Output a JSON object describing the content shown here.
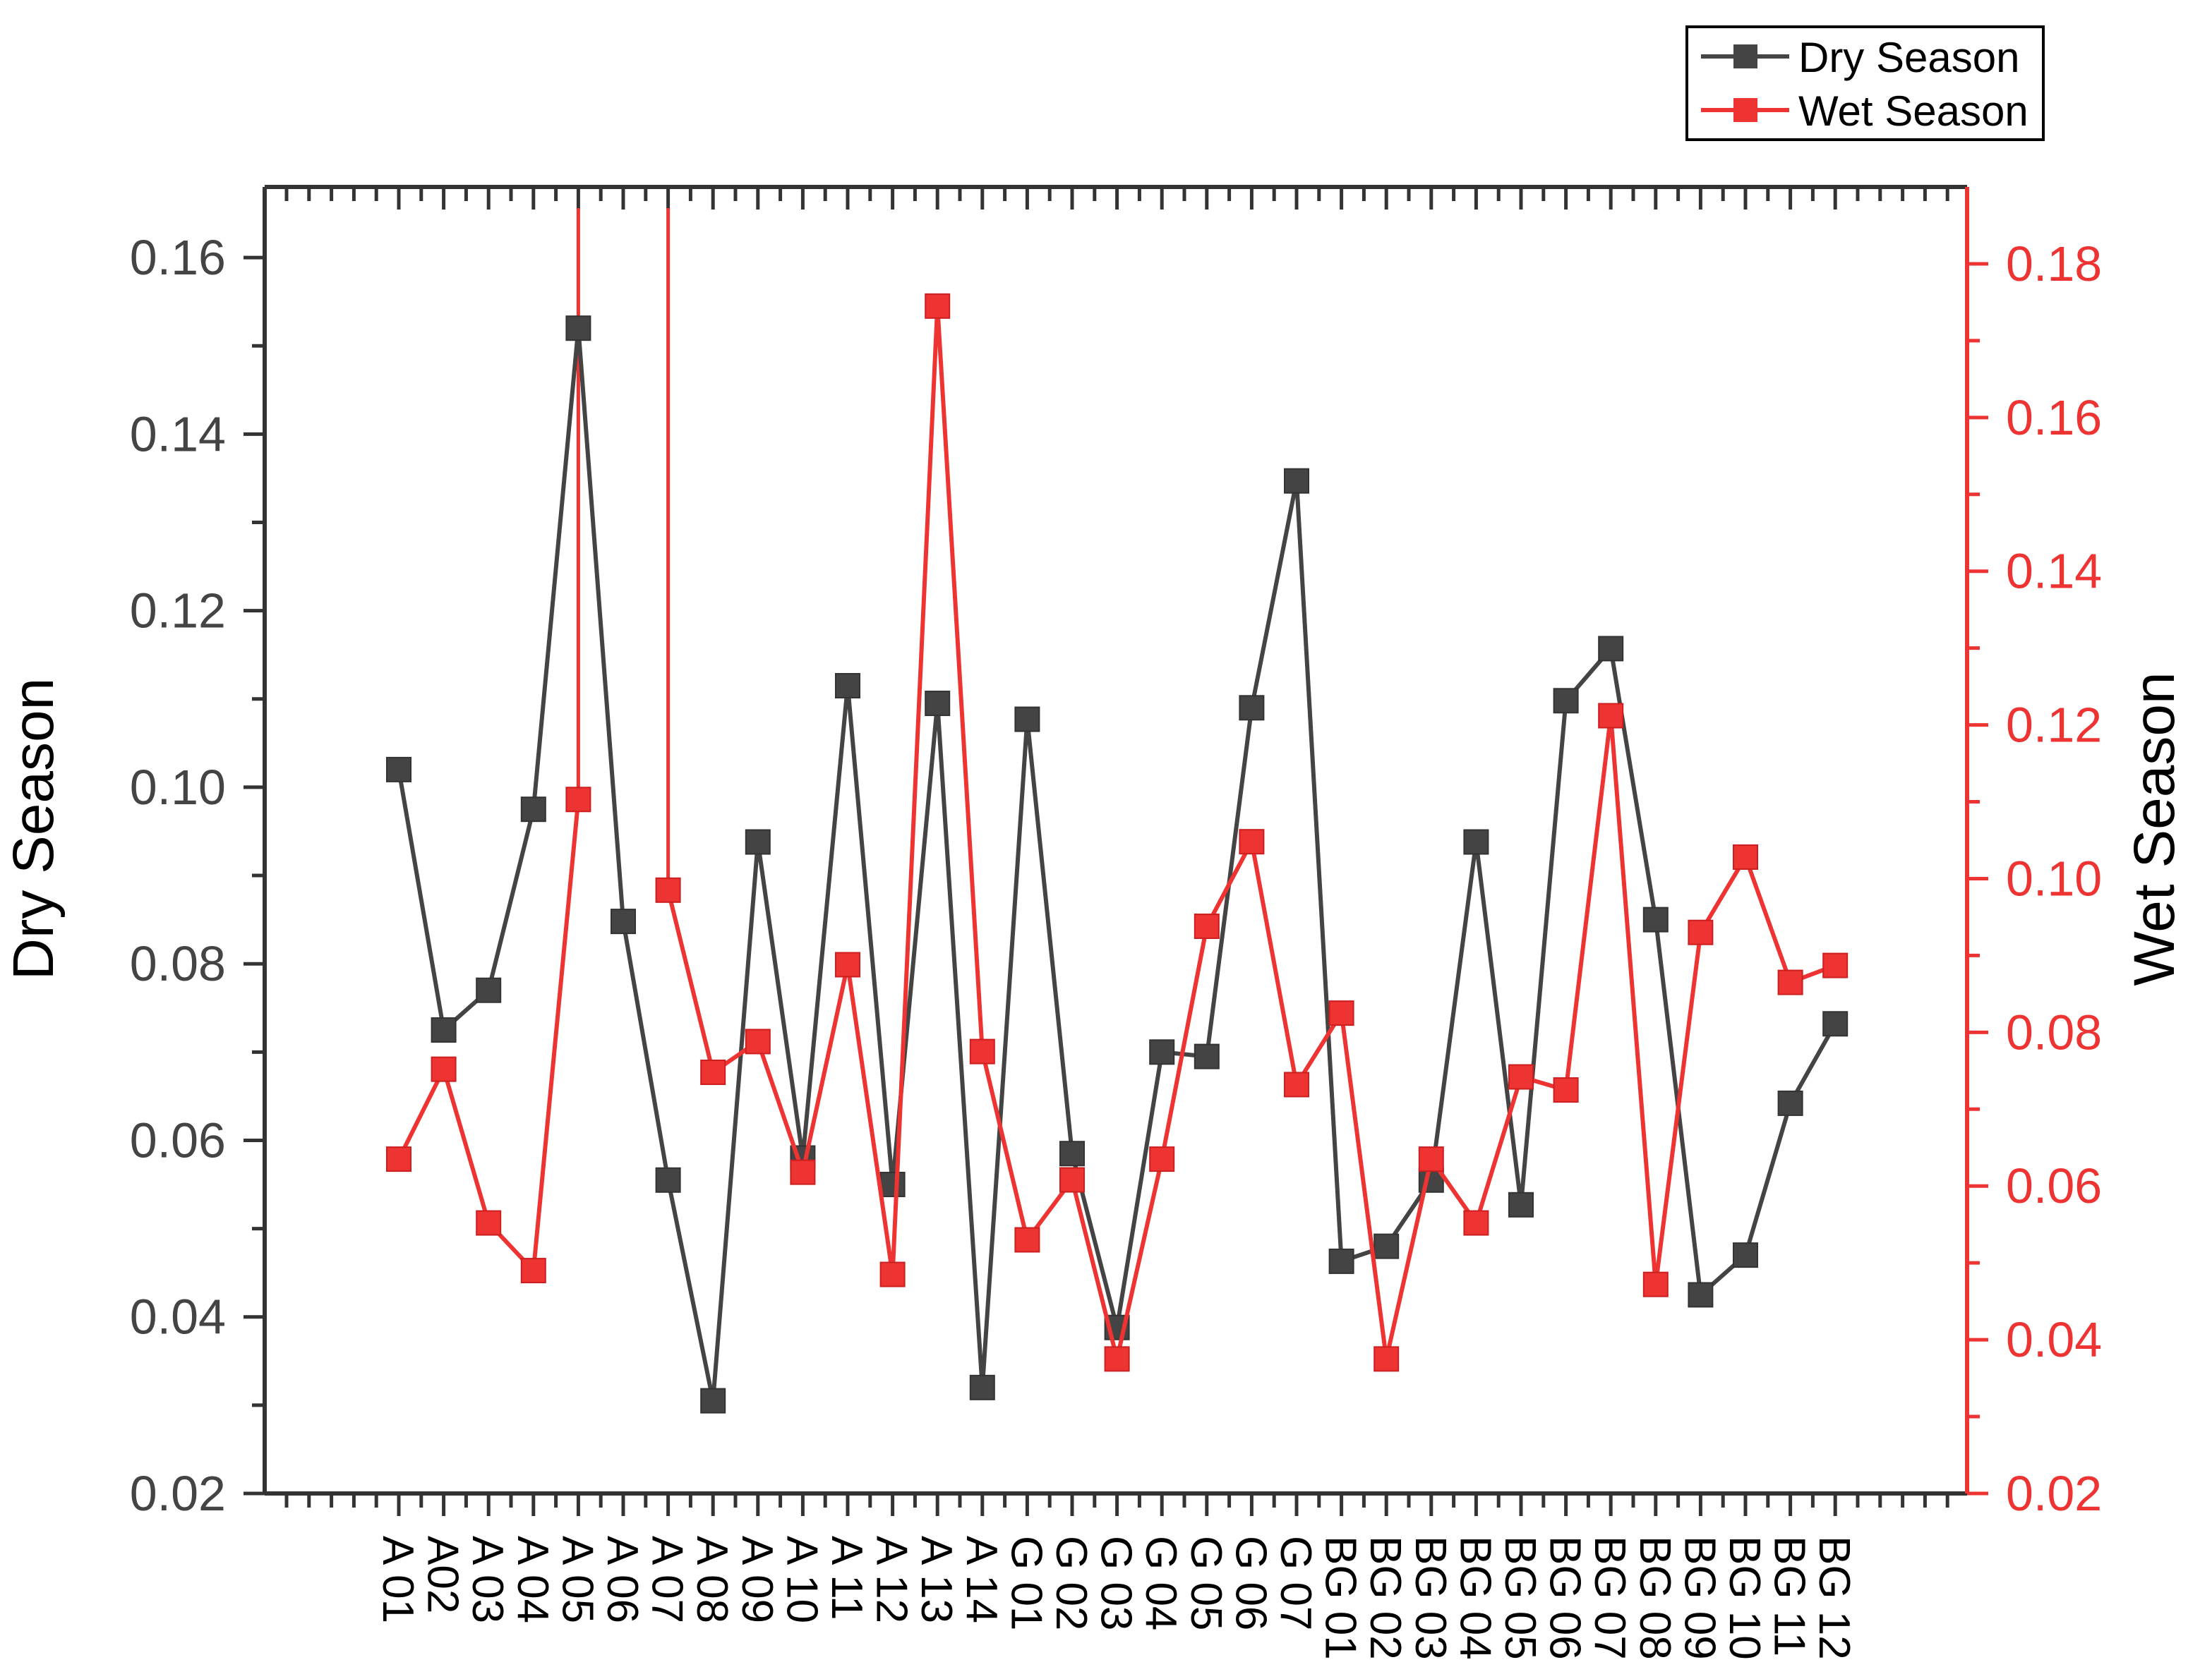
{
  "chart_data": {
    "type": "line",
    "categories": [
      "A 01",
      "A02",
      "A 03",
      "A 04",
      "A 05",
      "A 06",
      "A 07",
      "A 08",
      "A 09",
      "A 10",
      "A 11",
      "A 12",
      "A 13",
      "A 14",
      "G 01",
      "G 02",
      "G 03",
      "G 04",
      "G 05",
      "G 06",
      "G 07",
      "BG 01",
      "BG 02",
      "BG 03",
      "BG 04",
      "BG 05",
      "BG 06",
      "BG 07",
      "BG 08",
      "BG 09",
      "BG 10",
      "BG 11",
      "BG 12"
    ],
    "ylabel_left": "Dry Season",
    "ylabel_right": "Wet Season",
    "ylim_left": [
      0.02,
      0.168
    ],
    "ylim_right": [
      0.02,
      0.19
    ],
    "yticks_left": [
      "0.02",
      "0.04",
      "0.06",
      "0.08",
      "0.10",
      "0.12",
      "0.14",
      "0.16"
    ],
    "yticks_right": [
      "0.02",
      "0.04",
      "0.06",
      "0.08",
      "0.10",
      "0.12",
      "0.14",
      "0.16",
      "0.18"
    ],
    "legend_position": "top-right",
    "series": [
      {
        "name": "Dry Season",
        "axis": "left",
        "color": "#444444",
        "values": [
          0.102,
          0.0725,
          0.077,
          0.0975,
          0.152,
          0.0848,
          0.0555,
          0.0305,
          0.0938,
          0.058,
          0.1115,
          0.055,
          0.1095,
          0.032,
          0.1077,
          0.0585,
          0.0388,
          0.07,
          0.0695,
          0.109,
          0.1347,
          0.0463,
          0.048,
          0.0555,
          0.0938,
          0.0527,
          0.1098,
          0.1157,
          0.085,
          0.0425,
          0.047,
          0.0642,
          0.0732
        ]
      },
      {
        "name": "Wet Season",
        "axis": "right",
        "color": "#ee3333",
        "values": [
          0.0635,
          0.0752,
          0.0552,
          0.049,
          0.1103,
          null,
          0.0985,
          0.0748,
          0.0788,
          0.0618,
          0.0888,
          0.0485,
          0.1745,
          0.0775,
          0.053,
          0.0608,
          0.0375,
          0.0635,
          0.0938,
          0.1048,
          0.0732,
          0.0825,
          0.0375,
          0.0635,
          0.0552,
          0.0742,
          0.0725,
          0.1212,
          0.0472,
          0.093,
          0.1028,
          0.0865,
          0.0887
        ]
      }
    ],
    "spikes_right_axis": [
      {
        "category": "A 05",
        "from": 0.1103,
        "to": 0.19
      },
      {
        "category": "A 07",
        "from": 0.0985,
        "to": 0.19
      }
    ]
  }
}
